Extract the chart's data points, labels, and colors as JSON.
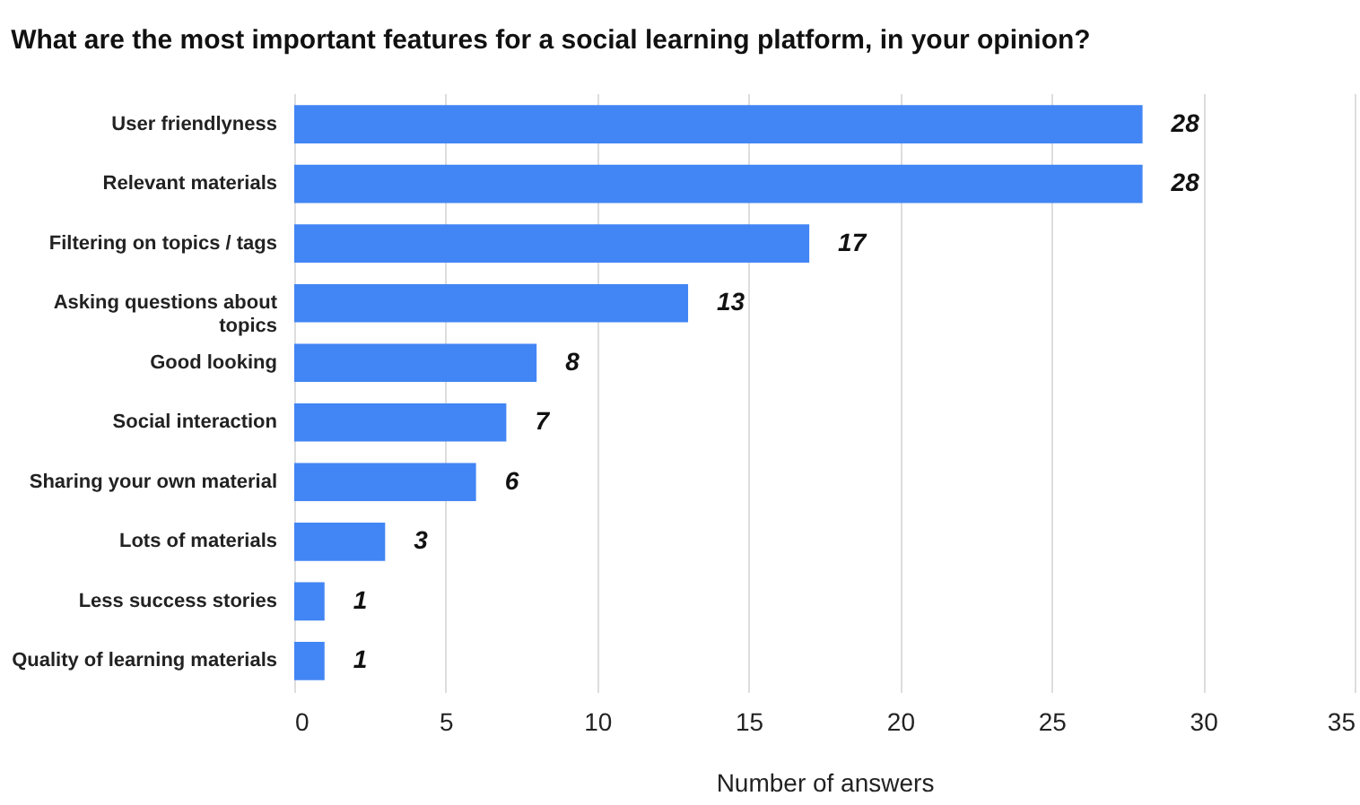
{
  "chart_data": {
    "type": "bar",
    "orientation": "horizontal",
    "title": "What are the most important features for a social learning platform, in your opinion?",
    "xlabel": "Number of answers",
    "categories": [
      "User friendlyness",
      "Relevant materials",
      "Filtering on topics / tags",
      "Asking questions about topics",
      "Good looking",
      "Social interaction",
      "Sharing your own material",
      "Lots of materials",
      "Less success stories",
      "Quality of learning materials"
    ],
    "values": [
      28,
      28,
      17,
      13,
      8,
      7,
      6,
      3,
      1,
      1
    ],
    "color": "#4285f4",
    "xlim": [
      0,
      35
    ],
    "xticks": [
      0,
      5,
      10,
      15,
      20,
      25,
      30,
      35
    ],
    "grid": "x",
    "data_labels": true
  }
}
